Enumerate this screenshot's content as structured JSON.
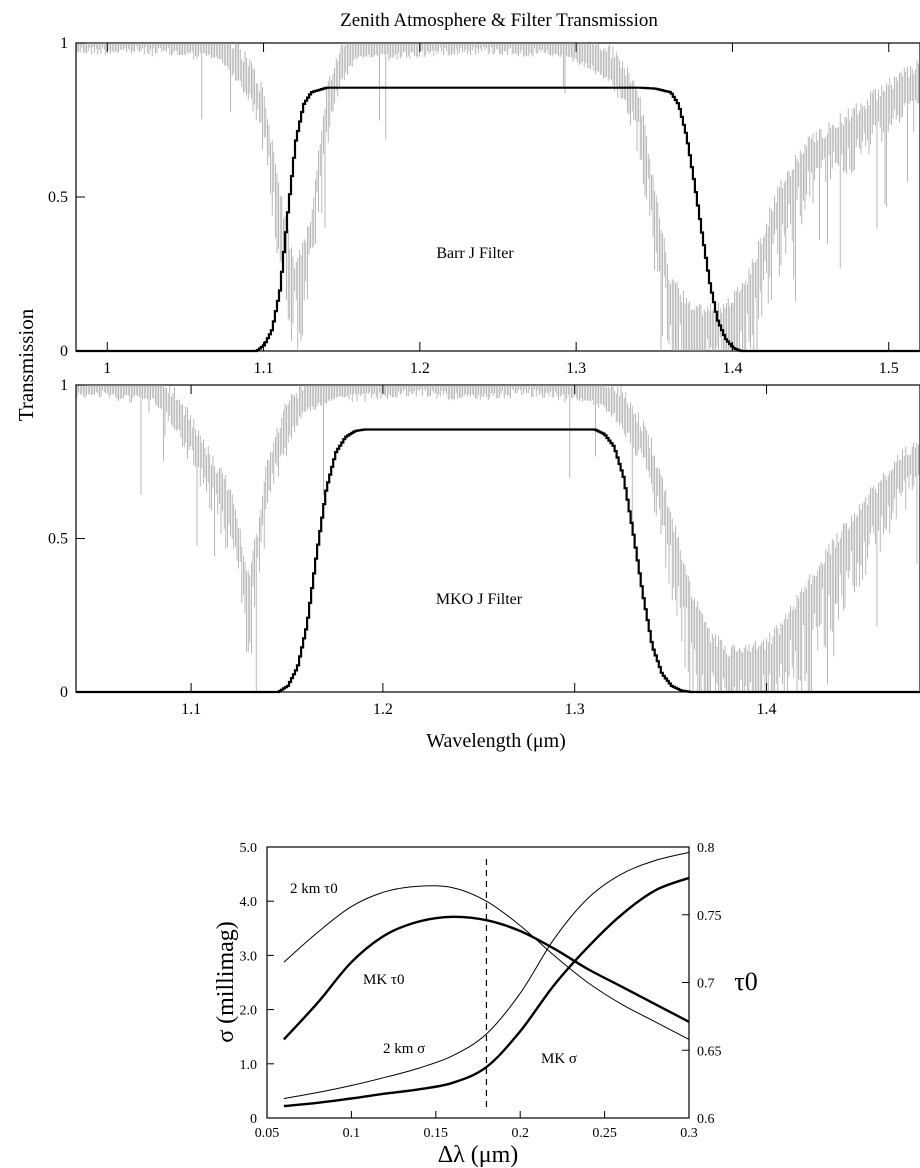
{
  "figure_title": "Zenith Atmosphere & Filter Transmission",
  "chart_data": [
    {
      "type": "line",
      "title": "",
      "xlabel": "",
      "ylabel": "Transmission",
      "xlim": [
        0.98,
        1.52
      ],
      "ylim": [
        0,
        1
      ],
      "xticks": [
        "1",
        "1.1",
        "1.2",
        "1.3",
        "1.4",
        "1.5"
      ],
      "yticks": [
        "0",
        "0.5",
        "1"
      ],
      "annotation": "Barr J Filter",
      "series": [
        {
          "name": "",
          "role": "filter",
          "color": "#000000",
          "x": [
            0.98,
            1.095,
            1.1,
            1.105,
            1.11,
            1.115,
            1.12,
            1.125,
            1.13,
            1.14,
            1.2,
            1.3,
            1.34,
            1.35,
            1.36,
            1.365,
            1.37,
            1.375,
            1.38,
            1.385,
            1.39,
            1.395,
            1.4,
            1.405,
            1.52
          ],
          "y": [
            0,
            0,
            0.02,
            0.07,
            0.2,
            0.45,
            0.68,
            0.8,
            0.84,
            0.855,
            0.855,
            0.855,
            0.855,
            0.852,
            0.84,
            0.8,
            0.7,
            0.55,
            0.38,
            0.22,
            0.1,
            0.04,
            0.01,
            0,
            0
          ]
        },
        {
          "name": "",
          "role": "atmosphere",
          "color": "#9a9a9a",
          "x": [
            0.98,
            1.02,
            1.05,
            1.07,
            1.08,
            1.09,
            1.1,
            1.105,
            1.11,
            1.115,
            1.12,
            1.125,
            1.13,
            1.135,
            1.14,
            1.15,
            1.16,
            1.18,
            1.2,
            1.22,
            1.25,
            1.28,
            1.3,
            1.31,
            1.32,
            1.33,
            1.34,
            1.345,
            1.35,
            1.355,
            1.36,
            1.37,
            1.38,
            1.39,
            1.4,
            1.41,
            1.42,
            1.43,
            1.45,
            1.48,
            1.5,
            1.52
          ],
          "y": [
            0.99,
            0.99,
            0.98,
            0.96,
            0.92,
            0.86,
            0.75,
            0.6,
            0.45,
            0.3,
            0.2,
            0.25,
            0.35,
            0.55,
            0.75,
            0.9,
            0.96,
            0.97,
            0.98,
            0.99,
            0.99,
            0.98,
            0.95,
            0.93,
            0.9,
            0.85,
            0.75,
            0.6,
            0.45,
            0.3,
            0.15,
            0.08,
            0.05,
            0.05,
            0.08,
            0.15,
            0.3,
            0.45,
            0.6,
            0.7,
            0.78,
            0.85
          ]
        }
      ]
    },
    {
      "type": "line",
      "title": "",
      "xlabel": "Wavelength (μm)",
      "ylabel": "Transmission",
      "xlim": [
        1.04,
        1.48
      ],
      "ylim": [
        0,
        1
      ],
      "xticks": [
        "1.1",
        "1.2",
        "1.3",
        "1.4"
      ],
      "yticks": [
        "0",
        "0.5",
        "1"
      ],
      "annotation": "MKO J Filter",
      "series": [
        {
          "name": "",
          "role": "filter",
          "color": "#000000",
          "x": [
            1.04,
            1.145,
            1.15,
            1.155,
            1.16,
            1.165,
            1.17,
            1.175,
            1.18,
            1.185,
            1.19,
            1.25,
            1.31,
            1.315,
            1.32,
            1.325,
            1.33,
            1.335,
            1.34,
            1.345,
            1.35,
            1.355,
            1.36,
            1.48
          ],
          "y": [
            0,
            0,
            0.02,
            0.08,
            0.22,
            0.45,
            0.66,
            0.78,
            0.83,
            0.85,
            0.855,
            0.855,
            0.855,
            0.84,
            0.8,
            0.7,
            0.52,
            0.32,
            0.15,
            0.06,
            0.02,
            0.005,
            0,
            0
          ]
        },
        {
          "name": "",
          "role": "atmosphere",
          "color": "#9a9a9a",
          "x": [
            1.04,
            1.06,
            1.08,
            1.09,
            1.1,
            1.11,
            1.12,
            1.125,
            1.13,
            1.135,
            1.14,
            1.15,
            1.16,
            1.18,
            1.2,
            1.22,
            1.25,
            1.27,
            1.29,
            1.31,
            1.32,
            1.33,
            1.34,
            1.35,
            1.36,
            1.37,
            1.38,
            1.39,
            1.4,
            1.41,
            1.42,
            1.44,
            1.46,
            1.48
          ],
          "y": [
            0.99,
            0.98,
            0.96,
            0.9,
            0.8,
            0.68,
            0.58,
            0.45,
            0.3,
            0.45,
            0.68,
            0.85,
            0.93,
            0.97,
            0.98,
            0.99,
            0.97,
            0.99,
            0.98,
            0.95,
            0.92,
            0.85,
            0.72,
            0.5,
            0.25,
            0.1,
            0.05,
            0.05,
            0.07,
            0.15,
            0.25,
            0.45,
            0.6,
            0.75
          ]
        }
      ]
    },
    {
      "type": "line",
      "title": "",
      "xlabel": "Δλ (μm)",
      "ylabel": "σ (millimag)",
      "y2label": "τ0",
      "xlim": [
        0.05,
        0.3
      ],
      "ylim": [
        0,
        5
      ],
      "y2lim": [
        0.6,
        0.8
      ],
      "xticks": [
        "0.05",
        "0.1",
        "0.15",
        "0.2",
        "0.25",
        "0.3"
      ],
      "yticks": [
        "0",
        "1.0",
        "2.0",
        "3.0",
        "4.0",
        "5.0"
      ],
      "y2ticks": [
        "0.6",
        "0.65",
        "0.7",
        "0.75",
        "0.8"
      ],
      "vline_x": 0.18,
      "series": [
        {
          "name": "MK τ0",
          "axis": "right",
          "weight": "bold",
          "x": [
            0.06,
            0.08,
            0.1,
            0.12,
            0.14,
            0.16,
            0.18,
            0.2,
            0.22,
            0.24,
            0.26,
            0.28,
            0.3
          ],
          "y": [
            0.658,
            0.685,
            0.715,
            0.735,
            0.745,
            0.7485,
            0.746,
            0.738,
            0.725,
            0.71,
            0.697,
            0.684,
            0.671
          ]
        },
        {
          "name": "2 km τ0",
          "axis": "right",
          "weight": "thin",
          "x": [
            0.06,
            0.08,
            0.1,
            0.12,
            0.14,
            0.16,
            0.18,
            0.2,
            0.22,
            0.24,
            0.26,
            0.28,
            0.3
          ],
          "y": [
            0.715,
            0.737,
            0.756,
            0.767,
            0.771,
            0.77,
            0.76,
            0.742,
            0.72,
            0.7,
            0.684,
            0.671,
            0.658
          ]
        },
        {
          "name": "MK σ",
          "axis": "left",
          "weight": "bold",
          "x": [
            0.06,
            0.08,
            0.1,
            0.12,
            0.14,
            0.16,
            0.18,
            0.2,
            0.22,
            0.24,
            0.26,
            0.28,
            0.3
          ],
          "y": [
            0.22,
            0.28,
            0.36,
            0.45,
            0.53,
            0.65,
            0.94,
            1.6,
            2.45,
            3.15,
            3.75,
            4.2,
            4.43
          ]
        },
        {
          "name": "2 km σ",
          "axis": "left",
          "weight": "thin",
          "x": [
            0.06,
            0.08,
            0.1,
            0.12,
            0.14,
            0.16,
            0.18,
            0.2,
            0.22,
            0.24,
            0.26,
            0.28,
            0.3
          ],
          "y": [
            0.36,
            0.47,
            0.6,
            0.75,
            0.92,
            1.15,
            1.55,
            2.3,
            3.3,
            4.05,
            4.5,
            4.75,
            4.9
          ]
        }
      ],
      "labels": {
        "mk_tau": "MK τ0",
        "km_tau": "2 km τ0",
        "mk_sigma": "MK σ",
        "km_sigma": "2 km σ"
      }
    }
  ]
}
